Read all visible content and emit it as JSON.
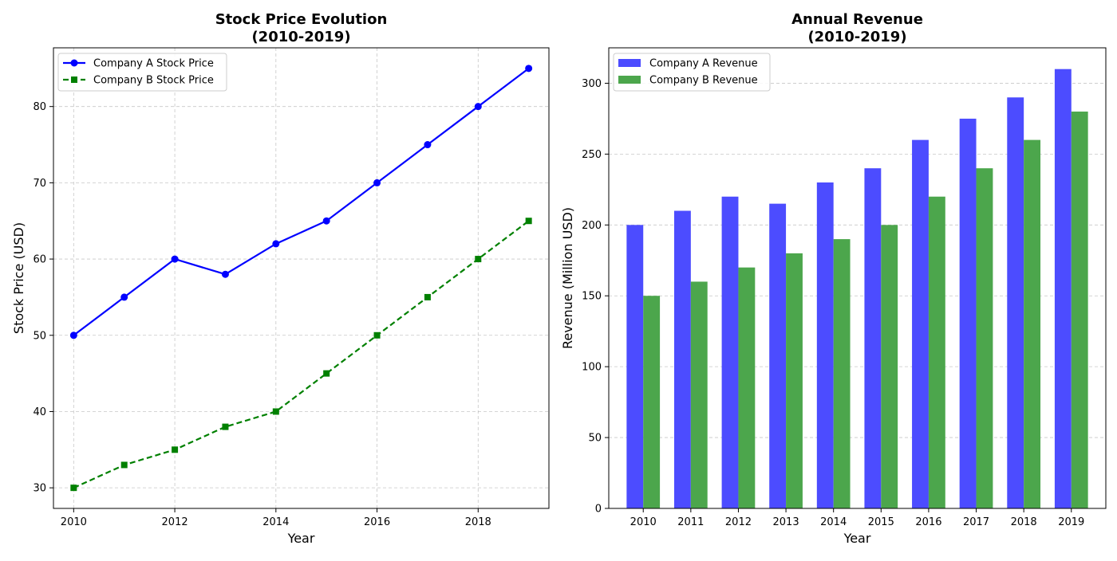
{
  "chart_data": [
    {
      "type": "line",
      "title": "Stock Price Evolution\n(2010-2019)",
      "xlabel": "Year",
      "ylabel": "Stock Price (USD)",
      "xlim": [
        2009.6,
        2019.4
      ],
      "ylim": [
        27.3,
        87.7
      ],
      "xticks": [
        2010,
        2012,
        2014,
        2016,
        2018
      ],
      "yticks": [
        30,
        40,
        50,
        60,
        70,
        80
      ],
      "grid": true,
      "legend_position": "top-left",
      "x": [
        2010,
        2011,
        2012,
        2013,
        2014,
        2015,
        2016,
        2017,
        2018,
        2019
      ],
      "series": [
        {
          "name": "Company A Stock Price",
          "values": [
            50,
            55,
            60,
            58,
            62,
            65,
            70,
            75,
            80,
            85
          ],
          "color": "#0000ff",
          "linestyle": "solid",
          "marker": "circle"
        },
        {
          "name": "Company B Stock Price",
          "values": [
            30,
            33,
            35,
            38,
            40,
            45,
            50,
            55,
            60,
            65
          ],
          "color": "#008000",
          "linestyle": "dashed",
          "marker": "square"
        }
      ]
    },
    {
      "type": "bar",
      "title": "Annual Revenue\n(2010-2019)",
      "xlabel": "Year",
      "ylabel": "Revenue (Million USD)",
      "ylim": [
        0,
        325
      ],
      "yticks": [
        0,
        50,
        100,
        150,
        200,
        250,
        300
      ],
      "grid": true,
      "legend_position": "top-left",
      "categories": [
        "2010",
        "2011",
        "2012",
        "2013",
        "2014",
        "2015",
        "2016",
        "2017",
        "2018",
        "2019"
      ],
      "series": [
        {
          "name": "Company A Revenue",
          "values": [
            200,
            210,
            220,
            215,
            230,
            240,
            260,
            275,
            290,
            310
          ],
          "color": "#4c4cff"
        },
        {
          "name": "Company B Revenue",
          "values": [
            150,
            160,
            170,
            180,
            190,
            200,
            220,
            240,
            260,
            280
          ],
          "color": "#4ca64c"
        }
      ]
    }
  ]
}
